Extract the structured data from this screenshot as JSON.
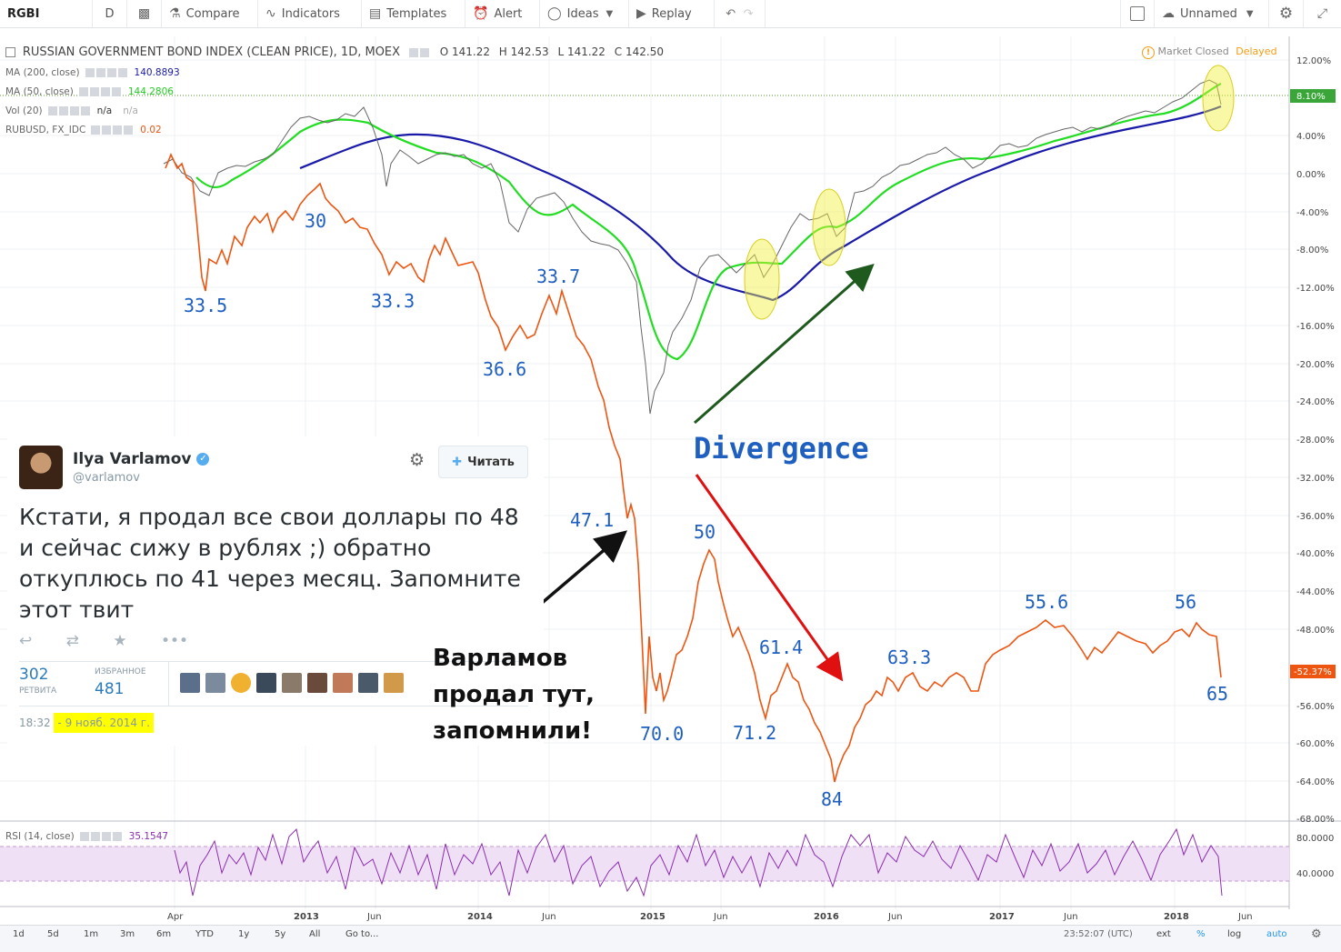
{
  "topbar": {
    "symbol": "RGBI",
    "interval": "D",
    "compare": "Compare",
    "indicators": "Indicators",
    "templates": "Templates",
    "alert": "Alert",
    "ideas": "Ideas",
    "replay": "Replay",
    "layout_name": "Unnamed"
  },
  "chart_title": {
    "name": "RUSSIAN GOVERNMENT BOND INDEX (CLEAN PRICE), 1D, MOEX",
    "open": "O 141.22",
    "high": "H 142.53",
    "low": "L 141.22",
    "close": "C 142.50"
  },
  "indicators": [
    {
      "label": "MA (200, close)",
      "value": "140.8893",
      "color": "#1a1aa8"
    },
    {
      "label": "MA (50, close)",
      "value": "144.2806",
      "color": "#22dd22"
    },
    {
      "label": "Vol (20)",
      "value": "n/a",
      "value2": "n/a",
      "color": "#333333"
    },
    {
      "label": "RUBUSD, FX_IDC",
      "value": "0.02",
      "color": "#ee5511"
    }
  ],
  "market_status": {
    "text": "Market Closed",
    "delay": "Delayed"
  },
  "rsi": {
    "label": "RSI (14, close)",
    "value": "35.1547",
    "levels": [
      "80.0000",
      "40.0000"
    ]
  },
  "y_axis": [
    "12.00%",
    "8.10%",
    "4.00%",
    "0.00%",
    "-4.00%",
    "-8.00%",
    "-12.00%",
    "-16.00%",
    "-20.00%",
    "-24.00%",
    "-28.00%",
    "-32.00%",
    "-36.00%",
    "-40.00%",
    "-44.00%",
    "-48.00%",
    "-52.37%",
    "-56.00%",
    "-60.00%",
    "-64.00%",
    "-68.00%"
  ],
  "x_axis": [
    "Apr",
    "2013",
    "Jun",
    "2014",
    "Jun",
    "2015",
    "Jun",
    "2016",
    "Jun",
    "2017",
    "Jun",
    "2018",
    "Jun"
  ],
  "annotations": {
    "rub_levels": [
      "33.5",
      "30",
      "33.3",
      "36.6",
      "33.7",
      "47.1",
      "70.0",
      "50",
      "71.2",
      "61.4",
      "84",
      "63.3",
      "55.6",
      "56",
      "65"
    ],
    "divergence": "Divergence",
    "note_lines": [
      "Варламов",
      "продал тут,",
      "запомнили!"
    ]
  },
  "tweet": {
    "name": "Ilya Varlamov",
    "handle": "@varlamov",
    "follow": "Читать",
    "text": "Кстати, я продал все свои доллары по 48 и сейчас сижу в рублях ;) обратно откуплюсь по 41 через месяц. Запомните этот твит",
    "retweets": "302",
    "retweets_label": "РЕТВИТА",
    "favorites": "481",
    "favorites_label": "ИЗБРАННОЕ",
    "time": "18:32",
    "date": "- 9 нояб. 2014 г."
  },
  "bottombar": {
    "ranges": [
      "1d",
      "5d",
      "1m",
      "3m",
      "6m",
      "YTD",
      "1y",
      "5y",
      "All",
      "Go to..."
    ],
    "clock": "23:52:07 (UTC)",
    "right": [
      "ext",
      "%",
      "log",
      "auto"
    ]
  },
  "chart_data": {
    "type": "line",
    "series": [
      {
        "name": "RUSSIAN GOVERNMENT BOND INDEX (CLEAN PRICE)",
        "color": "#444444"
      },
      {
        "name": "MA (200, close)",
        "color": "#1a1aa8"
      },
      {
        "name": "MA (50, close)",
        "color": "#22dd22"
      },
      {
        "name": "RUBUSD, FX_IDC",
        "color": "#ee5511"
      }
    ],
    "ylim": [
      "-68.00%",
      "12.00%"
    ],
    "highlighted_labels": [
      "8.10%",
      "-52.37%"
    ]
  }
}
